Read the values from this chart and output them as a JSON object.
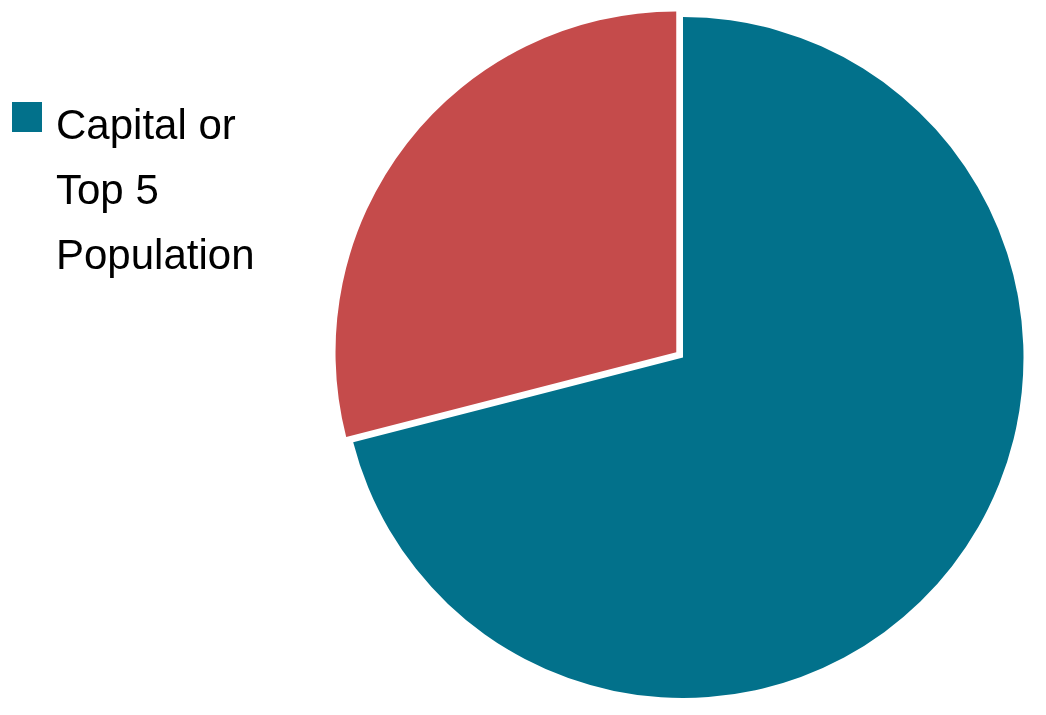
{
  "chart_data": {
    "type": "pie",
    "categories": [
      "Capital or Top 5 Population",
      null
    ],
    "values": [
      71,
      29
    ],
    "colors": [
      "#02718b",
      "#c54b4b"
    ],
    "legend": "left"
  }
}
